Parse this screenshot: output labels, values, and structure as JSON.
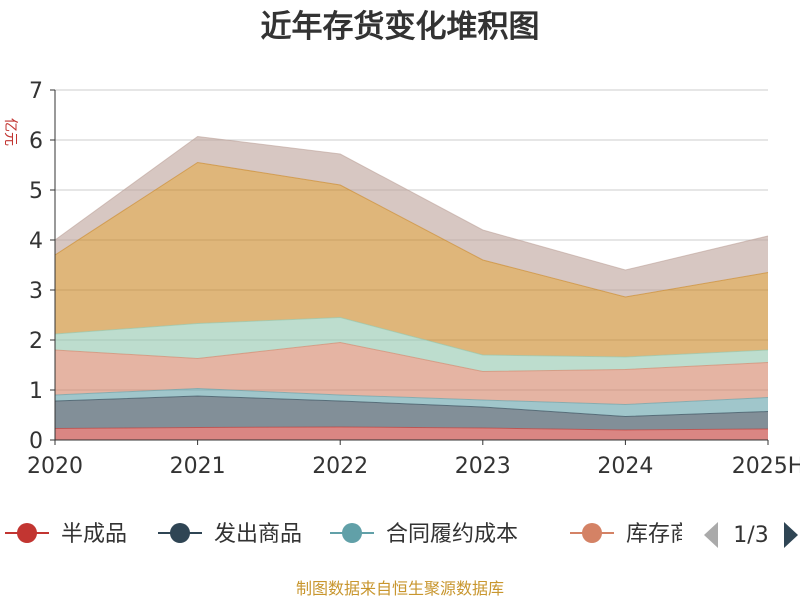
{
  "chart_data": {
    "type": "area",
    "stacked": true,
    "title": "近年存货变化堆积图",
    "ylabel": "亿元",
    "x": [
      "2020",
      "2021",
      "2022",
      "2023",
      "2024",
      "2025H"
    ],
    "ylim": [
      0,
      7
    ],
    "yticks": [
      0,
      1,
      2,
      3,
      4,
      5,
      6,
      7
    ],
    "grid": true,
    "series": [
      {
        "name": "半成品",
        "color": "#c23531",
        "values": [
          0.23,
          0.25,
          0.26,
          0.24,
          0.2,
          0.22
        ]
      },
      {
        "name": "发出商品",
        "color": "#2f4554",
        "values": [
          0.55,
          0.63,
          0.52,
          0.42,
          0.27,
          0.35
        ]
      },
      {
        "name": "合同履约成本",
        "color": "#61a0a8",
        "values": [
          0.12,
          0.15,
          0.12,
          0.14,
          0.24,
          0.28
        ]
      },
      {
        "name": "库存商品",
        "color": "#d48265",
        "values": [
          0.9,
          0.6,
          1.05,
          0.57,
          0.7,
          0.7
        ]
      },
      {
        "name": "",
        "color": "#91c7ae",
        "values": [
          0.32,
          0.7,
          0.5,
          0.33,
          0.25,
          0.25
        ]
      },
      {
        "name": "",
        "color": "#ca8622",
        "values": [
          1.58,
          3.22,
          2.65,
          1.9,
          1.2,
          1.55
        ]
      },
      {
        "name": "",
        "color": "#bda29a",
        "values": [
          0.3,
          0.52,
          0.62,
          0.6,
          0.54,
          0.73
        ]
      }
    ],
    "legend": {
      "position": "bottom",
      "visible_items": [
        "半成品",
        "发出商品",
        "合同履约成本",
        "库存商品"
      ],
      "page": "1/3"
    }
  },
  "source_note": "制图数据来自恒生聚源数据库"
}
